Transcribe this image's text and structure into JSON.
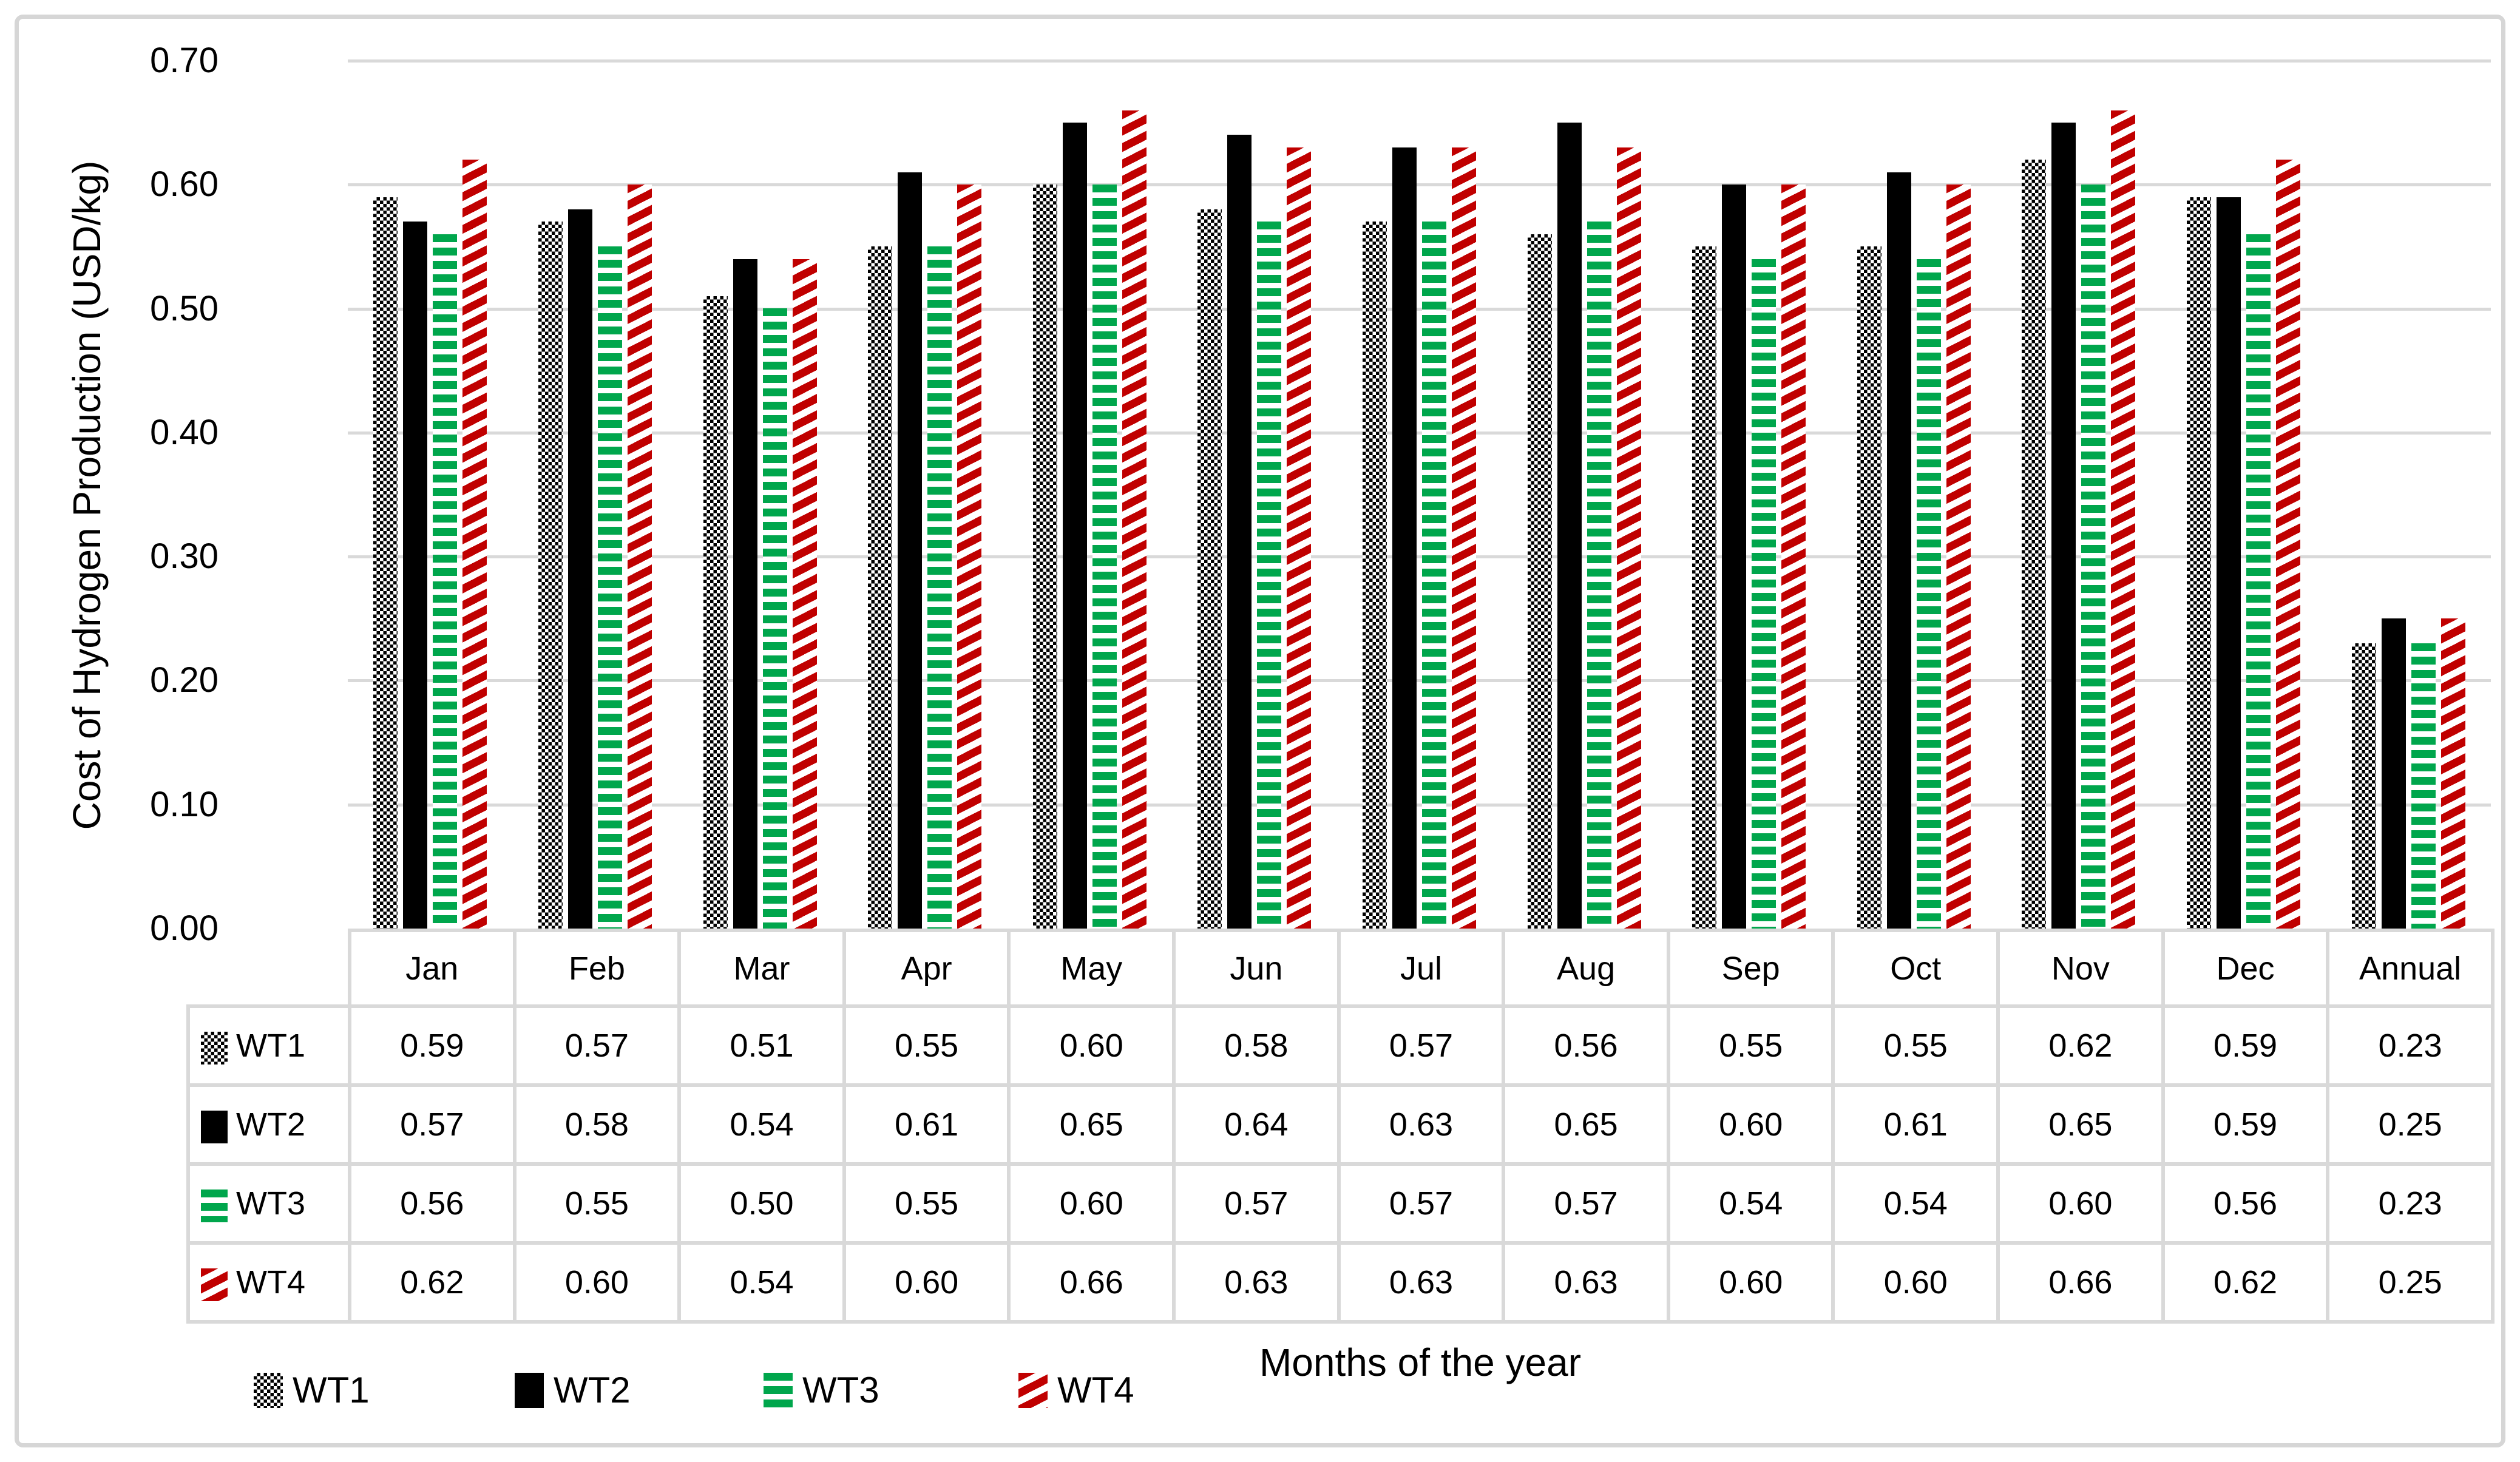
{
  "chart_data": {
    "type": "bar",
    "title": "",
    "xlabel": "Months of the year",
    "ylabel": "Cost of Hydrogen Production (USD/kg)",
    "ylim": [
      0,
      0.7
    ],
    "ytick_interval": 0.1,
    "yticks": [
      "0.70",
      "0.60",
      "0.50",
      "0.40",
      "0.30",
      "0.20",
      "0.10",
      "0.00"
    ],
    "grid": "horizontal",
    "legend_position": "bottom",
    "data_table_shown": true,
    "value_format": "two-decimals",
    "categories": [
      "Jan",
      "Feb",
      "Mar",
      "Apr",
      "May",
      "Jun",
      "Jul",
      "Aug",
      "Sep",
      "Oct",
      "Nov",
      "Dec",
      "Annual"
    ],
    "series": [
      {
        "name": "WT1",
        "pattern": "checkerboard",
        "color": "#000000",
        "values": [
          0.59,
          0.57,
          0.51,
          0.55,
          0.6,
          0.58,
          0.57,
          0.56,
          0.55,
          0.55,
          0.62,
          0.59,
          0.23
        ]
      },
      {
        "name": "WT2",
        "pattern": "solid",
        "color": "#000000",
        "values": [
          0.57,
          0.58,
          0.54,
          0.61,
          0.65,
          0.64,
          0.63,
          0.65,
          0.6,
          0.61,
          0.65,
          0.59,
          0.25
        ]
      },
      {
        "name": "WT3",
        "pattern": "horizontal-stripes",
        "color": "#00A64C",
        "values": [
          0.56,
          0.55,
          0.5,
          0.55,
          0.6,
          0.57,
          0.57,
          0.57,
          0.54,
          0.54,
          0.6,
          0.56,
          0.23
        ]
      },
      {
        "name": "WT4",
        "pattern": "diagonal-stripes",
        "color": "#C00000",
        "values": [
          0.62,
          0.6,
          0.54,
          0.6,
          0.66,
          0.63,
          0.63,
          0.63,
          0.6,
          0.6,
          0.66,
          0.62,
          0.25
        ]
      }
    ]
  },
  "legend": {
    "items": [
      "WT1",
      "WT2",
      "WT3",
      "WT4"
    ]
  },
  "colors": {
    "gridline": "#D9D9D9",
    "table_border": "#D9D9D9",
    "frame_border": "#D6D6D6",
    "text": "#000000",
    "wt1_black": "#000000",
    "wt2_black": "#000000",
    "wt3_green": "#00A64C",
    "wt4_red": "#C00000"
  }
}
